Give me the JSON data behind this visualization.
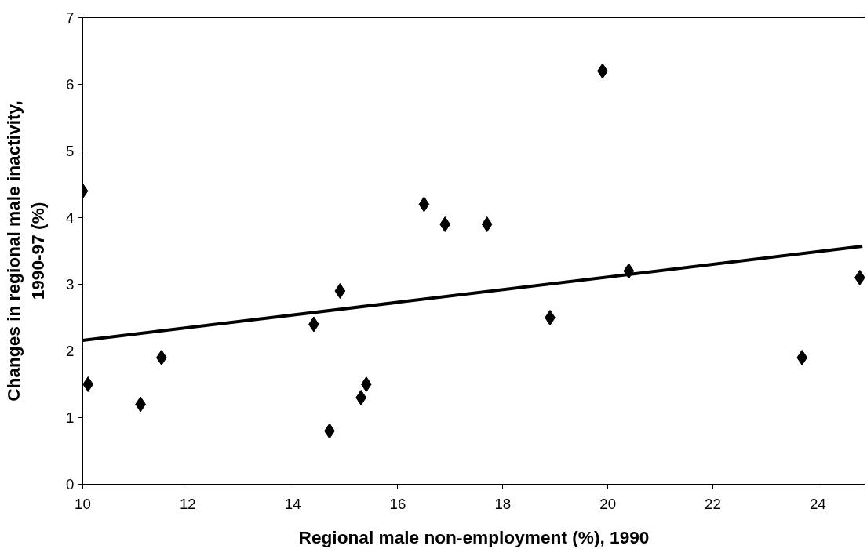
{
  "chart_data": {
    "type": "scatter",
    "xlabel": "Regional male non-employment (%), 1990",
    "ylabel": "Changes in regional male inactivity,\n1990-97 (%)",
    "xlim": [
      10,
      24.9
    ],
    "ylim": [
      0,
      7
    ],
    "xticks": [
      10,
      12,
      14,
      16,
      18,
      20,
      22,
      24
    ],
    "yticks": [
      0,
      1,
      2,
      3,
      4,
      5,
      6,
      7
    ],
    "grid": false,
    "series": [
      {
        "color": "#000000",
        "marker": "diamond",
        "x": [
          10,
          10.1,
          11.1,
          11.5,
          14.4,
          14.7,
          14.9,
          15.3,
          15.4,
          16.5,
          16.9,
          17.7,
          18.9,
          19.9,
          20.4,
          23.7,
          24.8
        ],
        "values": [
          4.4,
          1.5,
          1.2,
          1.9,
          2.4,
          0.8,
          2.9,
          1.3,
          1.5,
          4.2,
          3.9,
          3.9,
          2.5,
          6.2,
          3.2,
          1.9,
          3.1
        ]
      },
      {
        "type": "line",
        "color": "#000000",
        "x": [
          10,
          24.85
        ],
        "values": [
          2.16,
          3.57
        ],
        "line_style": "solid"
      }
    ]
  }
}
